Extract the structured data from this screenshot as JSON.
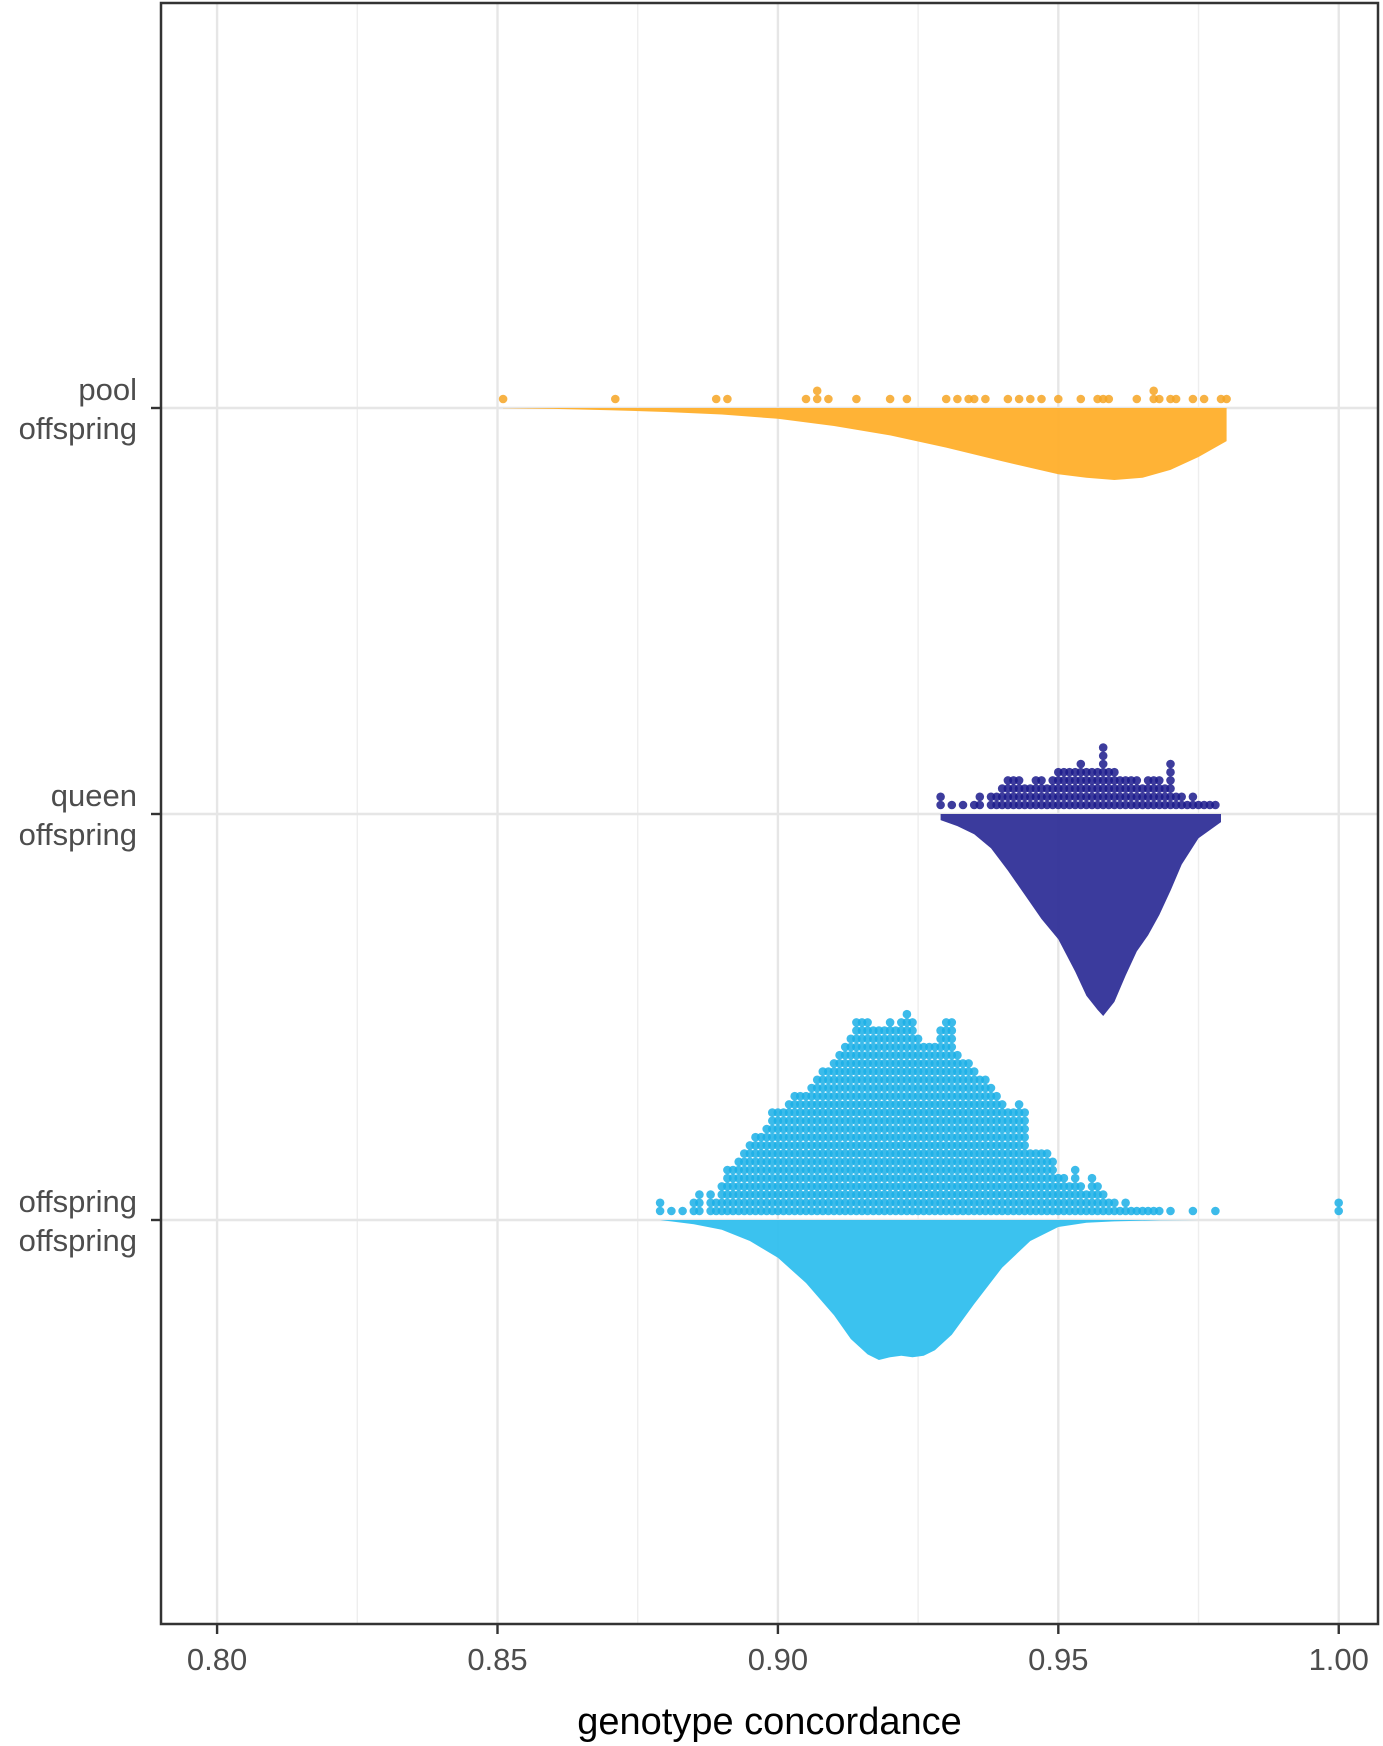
{
  "chart_data": {
    "type": "raincloud",
    "xlabel": "genotype concordance",
    "ylabel": "",
    "xlim": [
      0.79,
      1.007
    ],
    "x_ticks": [
      0.8,
      0.85,
      0.9,
      0.95,
      1.0
    ],
    "x_tick_labels": [
      "0.80",
      "0.85",
      "0.90",
      "0.95",
      "1.00"
    ],
    "grid": true,
    "legend": "none",
    "categories": [
      {
        "line1": "pool",
        "line2": "offspring"
      },
      {
        "line1": "queen",
        "line2": "offspring"
      },
      {
        "line1": "offspring",
        "line2": "offspring"
      }
    ],
    "series": [
      {
        "color": "#F6A523",
        "fill": "#FFB02E",
        "density_range": [
          0.851,
          0.98
        ],
        "density": [
          [
            0.851,
            0.003
          ],
          [
            0.86,
            0.012
          ],
          [
            0.87,
            0.03
          ],
          [
            0.88,
            0.055
          ],
          [
            0.89,
            0.09
          ],
          [
            0.9,
            0.15
          ],
          [
            0.91,
            0.25
          ],
          [
            0.92,
            0.38
          ],
          [
            0.93,
            0.55
          ],
          [
            0.94,
            0.74
          ],
          [
            0.95,
            0.92
          ],
          [
            0.955,
            0.97
          ],
          [
            0.96,
            1.0
          ],
          [
            0.965,
            0.97
          ],
          [
            0.97,
            0.86
          ],
          [
            0.975,
            0.68
          ],
          [
            0.98,
            0.46
          ]
        ],
        "points": [
          {
            "x": 0.851,
            "n": 1
          },
          {
            "x": 0.871,
            "n": 1
          },
          {
            "x": 0.889,
            "n": 1
          },
          {
            "x": 0.891,
            "n": 1
          },
          {
            "x": 0.905,
            "n": 1
          },
          {
            "x": 0.907,
            "n": 2
          },
          {
            "x": 0.909,
            "n": 1
          },
          {
            "x": 0.914,
            "n": 1
          },
          {
            "x": 0.92,
            "n": 1
          },
          {
            "x": 0.923,
            "n": 1
          },
          {
            "x": 0.93,
            "n": 1
          },
          {
            "x": 0.932,
            "n": 1
          },
          {
            "x": 0.934,
            "n": 1
          },
          {
            "x": 0.935,
            "n": 1
          },
          {
            "x": 0.937,
            "n": 1
          },
          {
            "x": 0.941,
            "n": 1
          },
          {
            "x": 0.943,
            "n": 1
          },
          {
            "x": 0.945,
            "n": 1
          },
          {
            "x": 0.947,
            "n": 1
          },
          {
            "x": 0.95,
            "n": 1
          },
          {
            "x": 0.954,
            "n": 1
          },
          {
            "x": 0.957,
            "n": 1
          },
          {
            "x": 0.958,
            "n": 1
          },
          {
            "x": 0.959,
            "n": 1
          },
          {
            "x": 0.964,
            "n": 1
          },
          {
            "x": 0.967,
            "n": 2
          },
          {
            "x": 0.968,
            "n": 1
          },
          {
            "x": 0.97,
            "n": 1
          },
          {
            "x": 0.971,
            "n": 1
          },
          {
            "x": 0.974,
            "n": 1
          },
          {
            "x": 0.976,
            "n": 1
          },
          {
            "x": 0.979,
            "n": 1
          },
          {
            "x": 0.98,
            "n": 1
          }
        ]
      },
      {
        "color": "#1B1A8C",
        "fill": "#333399",
        "density_range": [
          0.929,
          0.979
        ],
        "density": [
          [
            0.929,
            0.03
          ],
          [
            0.932,
            0.06
          ],
          [
            0.935,
            0.1
          ],
          [
            0.938,
            0.17
          ],
          [
            0.941,
            0.28
          ],
          [
            0.944,
            0.4
          ],
          [
            0.947,
            0.52
          ],
          [
            0.95,
            0.62
          ],
          [
            0.953,
            0.78
          ],
          [
            0.955,
            0.9
          ],
          [
            0.957,
            0.97
          ],
          [
            0.958,
            1.0
          ],
          [
            0.96,
            0.93
          ],
          [
            0.962,
            0.8
          ],
          [
            0.964,
            0.68
          ],
          [
            0.966,
            0.6
          ],
          [
            0.968,
            0.5
          ],
          [
            0.97,
            0.38
          ],
          [
            0.972,
            0.25
          ],
          [
            0.975,
            0.12
          ],
          [
            0.979,
            0.04
          ]
        ],
        "points": [
          {
            "x": 0.929,
            "n": 2
          },
          {
            "x": 0.931,
            "n": 1
          },
          {
            "x": 0.933,
            "n": 1
          },
          {
            "x": 0.935,
            "n": 1
          },
          {
            "x": 0.936,
            "n": 2
          },
          {
            "x": 0.938,
            "n": 2
          },
          {
            "x": 0.939,
            "n": 2
          },
          {
            "x": 0.94,
            "n": 3
          },
          {
            "x": 0.941,
            "n": 4
          },
          {
            "x": 0.942,
            "n": 4
          },
          {
            "x": 0.943,
            "n": 4
          },
          {
            "x": 0.944,
            "n": 3
          },
          {
            "x": 0.945,
            "n": 3
          },
          {
            "x": 0.946,
            "n": 4
          },
          {
            "x": 0.947,
            "n": 4
          },
          {
            "x": 0.948,
            "n": 3
          },
          {
            "x": 0.949,
            "n": 4
          },
          {
            "x": 0.95,
            "n": 5
          },
          {
            "x": 0.951,
            "n": 5
          },
          {
            "x": 0.952,
            "n": 5
          },
          {
            "x": 0.953,
            "n": 5
          },
          {
            "x": 0.954,
            "n": 6
          },
          {
            "x": 0.955,
            "n": 5
          },
          {
            "x": 0.956,
            "n": 5
          },
          {
            "x": 0.957,
            "n": 5
          },
          {
            "x": 0.958,
            "n": 8
          },
          {
            "x": 0.959,
            "n": 5
          },
          {
            "x": 0.96,
            "n": 5
          },
          {
            "x": 0.961,
            "n": 4
          },
          {
            "x": 0.962,
            "n": 4
          },
          {
            "x": 0.963,
            "n": 4
          },
          {
            "x": 0.964,
            "n": 4
          },
          {
            "x": 0.965,
            "n": 3
          },
          {
            "x": 0.966,
            "n": 4
          },
          {
            "x": 0.967,
            "n": 4
          },
          {
            "x": 0.968,
            "n": 4
          },
          {
            "x": 0.969,
            "n": 3
          },
          {
            "x": 0.97,
            "n": 6
          },
          {
            "x": 0.971,
            "n": 2
          },
          {
            "x": 0.972,
            "n": 2
          },
          {
            "x": 0.973,
            "n": 1
          },
          {
            "x": 0.974,
            "n": 2
          },
          {
            "x": 0.975,
            "n": 1
          },
          {
            "x": 0.976,
            "n": 1
          },
          {
            "x": 0.977,
            "n": 1
          },
          {
            "x": 0.978,
            "n": 1
          }
        ]
      },
      {
        "color": "#1AAFE6",
        "fill": "#33BFEE",
        "density_range": [
          0.879,
          0.975
        ],
        "density": [
          [
            0.879,
            0.0
          ],
          [
            0.885,
            0.03
          ],
          [
            0.89,
            0.07
          ],
          [
            0.895,
            0.15
          ],
          [
            0.9,
            0.27
          ],
          [
            0.905,
            0.45
          ],
          [
            0.91,
            0.68
          ],
          [
            0.913,
            0.85
          ],
          [
            0.916,
            0.96
          ],
          [
            0.918,
            1.0
          ],
          [
            0.92,
            0.98
          ],
          [
            0.922,
            0.97
          ],
          [
            0.924,
            0.98
          ],
          [
            0.926,
            0.97
          ],
          [
            0.928,
            0.93
          ],
          [
            0.931,
            0.82
          ],
          [
            0.935,
            0.6
          ],
          [
            0.94,
            0.34
          ],
          [
            0.945,
            0.15
          ],
          [
            0.95,
            0.05
          ],
          [
            0.955,
            0.02
          ],
          [
            0.96,
            0.01
          ],
          [
            0.968,
            0.002
          ],
          [
            0.975,
            0.0
          ]
        ],
        "points": [
          {
            "x": 0.879,
            "n": 2
          },
          {
            "x": 0.881,
            "n": 1
          },
          {
            "x": 0.883,
            "n": 1
          },
          {
            "x": 0.885,
            "n": 2
          },
          {
            "x": 0.886,
            "n": 3
          },
          {
            "x": 0.888,
            "n": 3
          },
          {
            "x": 0.889,
            "n": 2
          },
          {
            "x": 0.89,
            "n": 4
          },
          {
            "x": 0.891,
            "n": 6
          },
          {
            "x": 0.892,
            "n": 6
          },
          {
            "x": 0.893,
            "n": 7
          },
          {
            "x": 0.894,
            "n": 8
          },
          {
            "x": 0.895,
            "n": 9
          },
          {
            "x": 0.896,
            "n": 10
          },
          {
            "x": 0.897,
            "n": 10
          },
          {
            "x": 0.898,
            "n": 11
          },
          {
            "x": 0.899,
            "n": 13
          },
          {
            "x": 0.9,
            "n": 13
          },
          {
            "x": 0.901,
            "n": 13
          },
          {
            "x": 0.902,
            "n": 14
          },
          {
            "x": 0.903,
            "n": 15
          },
          {
            "x": 0.904,
            "n": 15
          },
          {
            "x": 0.905,
            "n": 15
          },
          {
            "x": 0.906,
            "n": 16
          },
          {
            "x": 0.907,
            "n": 17
          },
          {
            "x": 0.908,
            "n": 18
          },
          {
            "x": 0.909,
            "n": 18
          },
          {
            "x": 0.91,
            "n": 19
          },
          {
            "x": 0.911,
            "n": 20
          },
          {
            "x": 0.912,
            "n": 21
          },
          {
            "x": 0.913,
            "n": 22
          },
          {
            "x": 0.914,
            "n": 24
          },
          {
            "x": 0.915,
            "n": 24
          },
          {
            "x": 0.916,
            "n": 24
          },
          {
            "x": 0.917,
            "n": 23
          },
          {
            "x": 0.918,
            "n": 23
          },
          {
            "x": 0.919,
            "n": 23
          },
          {
            "x": 0.92,
            "n": 24
          },
          {
            "x": 0.921,
            "n": 23
          },
          {
            "x": 0.922,
            "n": 24
          },
          {
            "x": 0.923,
            "n": 25
          },
          {
            "x": 0.924,
            "n": 24
          },
          {
            "x": 0.925,
            "n": 22
          },
          {
            "x": 0.926,
            "n": 21
          },
          {
            "x": 0.927,
            "n": 21
          },
          {
            "x": 0.928,
            "n": 21
          },
          {
            "x": 0.929,
            "n": 23
          },
          {
            "x": 0.93,
            "n": 24
          },
          {
            "x": 0.931,
            "n": 24
          },
          {
            "x": 0.932,
            "n": 20
          },
          {
            "x": 0.933,
            "n": 19
          },
          {
            "x": 0.934,
            "n": 19
          },
          {
            "x": 0.935,
            "n": 18
          },
          {
            "x": 0.936,
            "n": 17
          },
          {
            "x": 0.937,
            "n": 17
          },
          {
            "x": 0.938,
            "n": 16
          },
          {
            "x": 0.939,
            "n": 15
          },
          {
            "x": 0.94,
            "n": 14
          },
          {
            "x": 0.941,
            "n": 13
          },
          {
            "x": 0.942,
            "n": 13
          },
          {
            "x": 0.943,
            "n": 14
          },
          {
            "x": 0.944,
            "n": 13
          },
          {
            "x": 0.945,
            "n": 8
          },
          {
            "x": 0.946,
            "n": 8
          },
          {
            "x": 0.947,
            "n": 8
          },
          {
            "x": 0.948,
            "n": 8
          },
          {
            "x": 0.949,
            "n": 7
          },
          {
            "x": 0.95,
            "n": 5
          },
          {
            "x": 0.951,
            "n": 5
          },
          {
            "x": 0.952,
            "n": 4
          },
          {
            "x": 0.953,
            "n": 6
          },
          {
            "x": 0.954,
            "n": 4
          },
          {
            "x": 0.955,
            "n": 3
          },
          {
            "x": 0.956,
            "n": 5
          },
          {
            "x": 0.957,
            "n": 4
          },
          {
            "x": 0.958,
            "n": 3
          },
          {
            "x": 0.959,
            "n": 2
          },
          {
            "x": 0.96,
            "n": 2
          },
          {
            "x": 0.961,
            "n": 1
          },
          {
            "x": 0.962,
            "n": 2
          },
          {
            "x": 0.963,
            "n": 1
          },
          {
            "x": 0.964,
            "n": 1
          },
          {
            "x": 0.965,
            "n": 1
          },
          {
            "x": 0.966,
            "n": 1
          },
          {
            "x": 0.967,
            "n": 1
          },
          {
            "x": 0.968,
            "n": 1
          },
          {
            "x": 0.97,
            "n": 1
          },
          {
            "x": 0.974,
            "n": 1
          },
          {
            "x": 0.978,
            "n": 1
          },
          {
            "x": 1.0,
            "n": 2
          }
        ]
      }
    ]
  }
}
